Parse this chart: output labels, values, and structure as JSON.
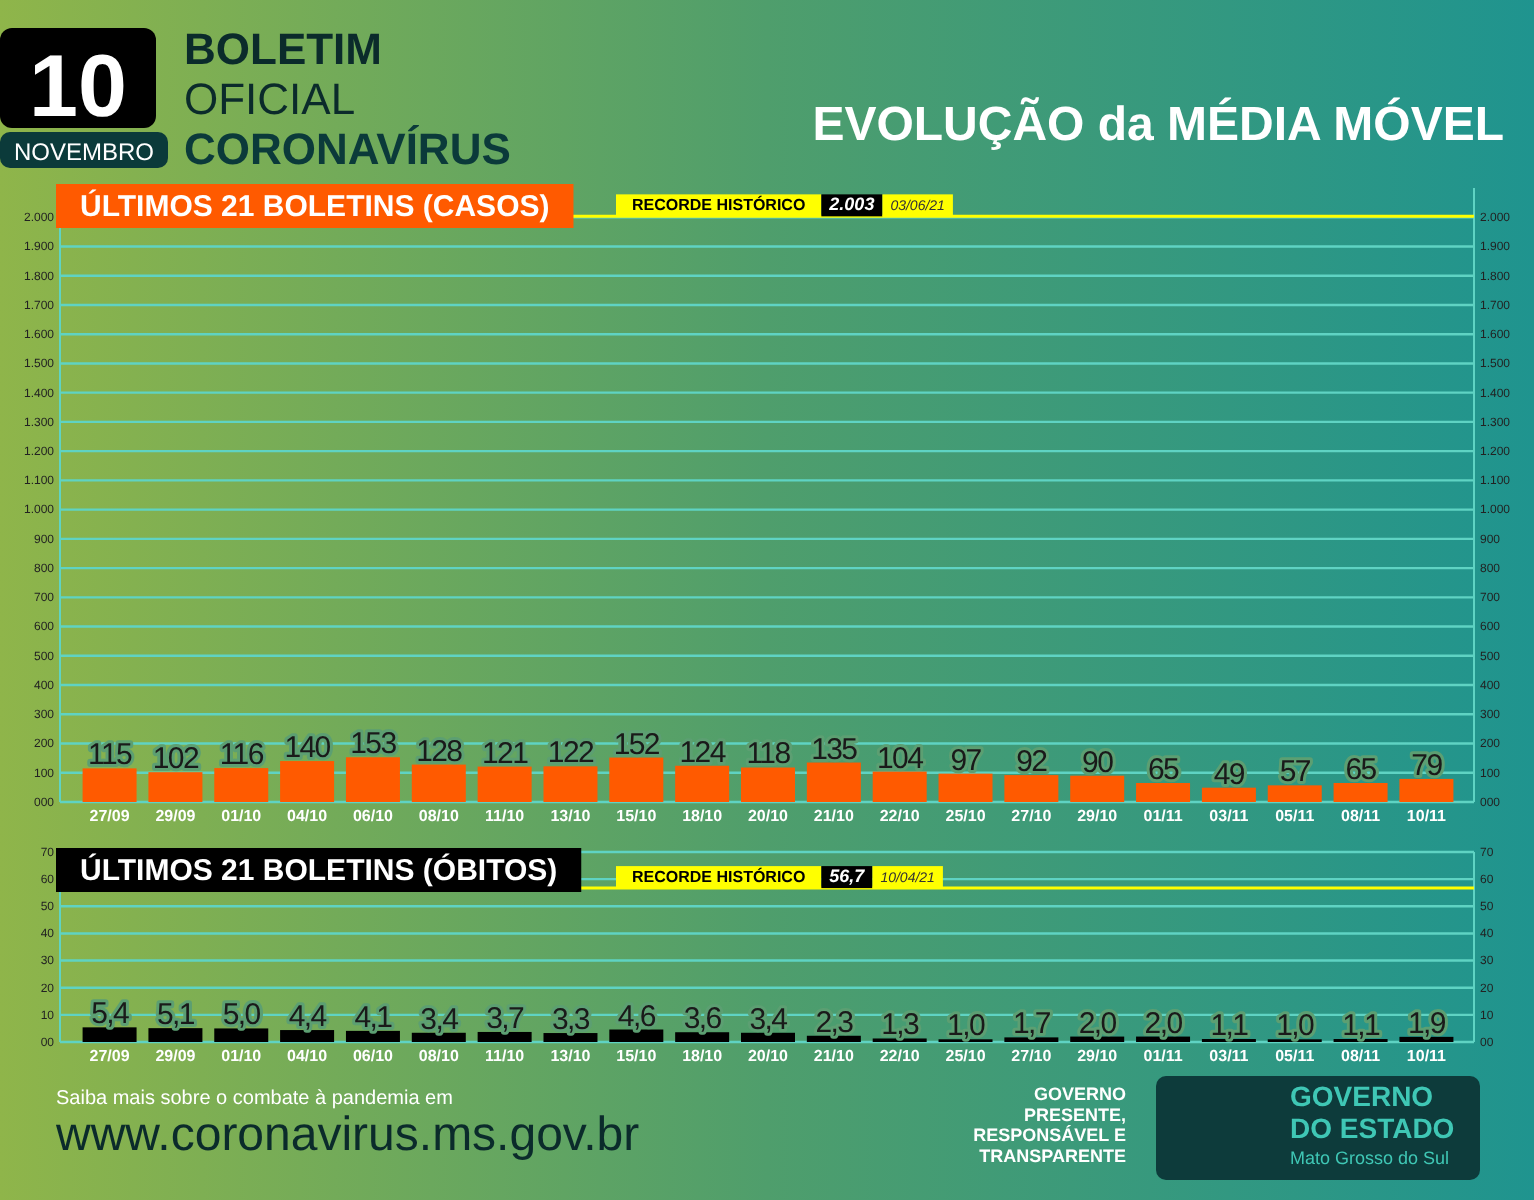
{
  "chart_data": [
    {
      "type": "other",
      "title": "EVOLUÇÃO da MÉDIA MÓVEL",
      "annotations": [
        "10",
        "NOVEMBRO",
        "BOLETIM",
        "OFICIAL",
        "CORONAVÍRUS",
        "Saiba mais sobre o combate à pandemia em",
        "www.coronavirus.ms.gov.br",
        "GOVERNO PRESENTE, RESPONSÁVEL E TRANSPARENTE",
        "GOVERNO DO ESTADO",
        "Mato Grosso do Sul"
      ]
    },
    {
      "type": "bar",
      "title": "ÚLTIMOS 21 BOLETINS (CASOS)",
      "categories": [
        "27/09",
        "29/09",
        "01/10",
        "04/10",
        "06/10",
        "08/10",
        "11/10",
        "13/10",
        "15/10",
        "18/10",
        "20/10",
        "21/10",
        "22/10",
        "25/10",
        "27/10",
        "29/10",
        "01/11",
        "03/11",
        "05/11",
        "08/11",
        "10/11"
      ],
      "values": [
        115,
        102,
        116,
        140,
        153,
        128,
        121,
        122,
        152,
        124,
        118,
        135,
        104,
        97,
        92,
        90,
        65,
        49,
        57,
        65,
        79
      ],
      "color": "#ff5a00",
      "data_labels": true,
      "grid": "y",
      "ylim": [
        0,
        2100
      ],
      "yticks": [
        {
          "value": 0,
          "label": "000"
        },
        100,
        200,
        300,
        400,
        500,
        600,
        700,
        800,
        900,
        {
          "value": 1000,
          "label": "1.000"
        },
        {
          "value": 1100,
          "label": "1.100"
        },
        {
          "value": 1200,
          "label": "1.200"
        },
        {
          "value": 1300,
          "label": "1.300"
        },
        {
          "value": 1400,
          "label": "1.400"
        },
        {
          "value": 1500,
          "label": "1.500"
        },
        {
          "value": 1600,
          "label": "1.600"
        },
        {
          "value": 1700,
          "label": "1.700"
        },
        {
          "value": 1800,
          "label": "1.800"
        },
        {
          "value": 1900,
          "label": "1.900"
        },
        {
          "value": 2000,
          "label": "2.000"
        }
      ],
      "y2lim": [
        0,
        2100
      ],
      "y2ticks": [
        {
          "value": 0,
          "label": "000"
        },
        100,
        200,
        300,
        400,
        500,
        600,
        700,
        800,
        900,
        {
          "value": 1000,
          "label": "1.000"
        },
        {
          "value": 1100,
          "label": "1.100"
        },
        {
          "value": 1200,
          "label": "1.200"
        },
        {
          "value": 1300,
          "label": "1.300"
        },
        {
          "value": 1400,
          "label": "1.400"
        },
        {
          "value": 1500,
          "label": "1.500"
        },
        {
          "value": 1600,
          "label": "1.600"
        },
        {
          "value": 1700,
          "label": "1.700"
        },
        {
          "value": 1800,
          "label": "1.800"
        },
        {
          "value": 1900,
          "label": "1.900"
        },
        {
          "value": 2000,
          "label": "2.000"
        }
      ],
      "ref_lines": [
        {
          "axis": "y",
          "value": 2003,
          "label": "RECORDE HISTÓRICO",
          "color": "#ffff00"
        }
      ],
      "annotations": [
        "2.003",
        "03/06/21"
      ]
    },
    {
      "type": "bar",
      "title": "ÚLTIMOS 21 BOLETINS (ÓBITOS)",
      "categories": [
        "27/09",
        "29/09",
        "01/10",
        "04/10",
        "06/10",
        "08/10",
        "11/10",
        "13/10",
        "15/10",
        "18/10",
        "20/10",
        "21/10",
        "22/10",
        "25/10",
        "27/10",
        "29/10",
        "01/11",
        "03/11",
        "05/11",
        "08/11",
        "10/11"
      ],
      "values": [
        5.4,
        5.1,
        5.0,
        4.4,
        4.1,
        3.4,
        3.7,
        3.3,
        4.6,
        3.6,
        3.4,
        2.3,
        1.3,
        1.0,
        1.7,
        2.0,
        2.0,
        1.1,
        1.0,
        1.1,
        1.9
      ],
      "value_labels": [
        "5,4",
        "5,1",
        "5,0",
        "4,4",
        "4,1",
        "3,4",
        "3,7",
        "3,3",
        "4,6",
        "3,6",
        "3,4",
        "2,3",
        "1,3",
        "1,0",
        "1,7",
        "2,0",
        "2,0",
        "1,1",
        "1,0",
        "1,1",
        "1,9"
      ],
      "color": "#000000",
      "grid": "y",
      "ylim": [
        0,
        70
      ],
      "yticks": [
        {
          "value": 0,
          "label": "00"
        },
        10,
        20,
        30,
        40,
        50,
        60,
        70
      ],
      "y2lim": [
        0,
        70
      ],
      "y2ticks": [
        {
          "value": 0,
          "label": "00"
        },
        10,
        20,
        30,
        40,
        50,
        60,
        70
      ],
      "ref_lines": [
        {
          "axis": "y",
          "value": 56.7,
          "label": "RECORDE HISTÓRICO",
          "color": "#ffff00"
        }
      ],
      "annotations": [
        "56,7",
        "10/04/21"
      ]
    }
  ]
}
